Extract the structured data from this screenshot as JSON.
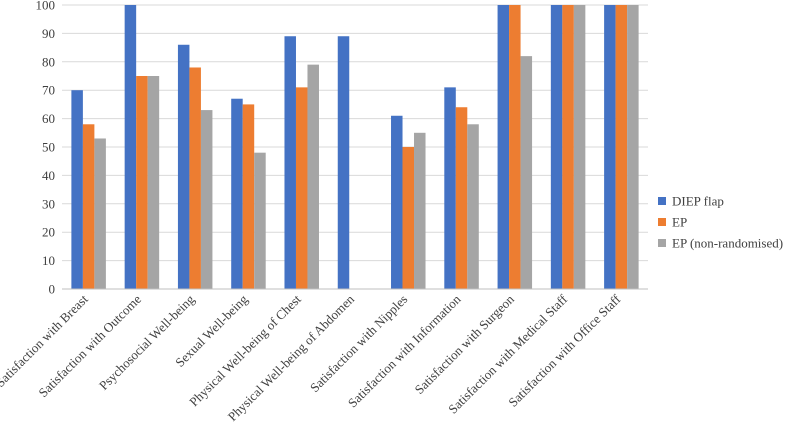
{
  "chart_data": {
    "type": "bar",
    "title": "",
    "xlabel": "",
    "ylabel": "",
    "ylim": [
      0,
      100
    ],
    "yticks": [
      0,
      10,
      20,
      30,
      40,
      50,
      60,
      70,
      80,
      90,
      100
    ],
    "grid": "horizontal",
    "legend_position": "right",
    "categories": [
      "Satisfaction with Breast",
      "Satisfaction with Outcome",
      "Psychosocial Well-being",
      "Sexual Well-being",
      "Physical Well-being of Chest",
      "Physical Well-being of Abdomen",
      "Satisfaction with Nipples",
      "Satisfaction with Information",
      "Satisfaction with Surgeon",
      "Satisfaction with Medical Staff",
      "Satisfaction with Office Staff"
    ],
    "series": [
      {
        "name": "DIEP flap",
        "color": "#4472c4",
        "values": [
          70,
          100,
          86,
          67,
          89,
          89,
          61,
          71,
          100,
          100,
          100
        ]
      },
      {
        "name": "EP",
        "color": "#ed7d31",
        "values": [
          58,
          75,
          78,
          65,
          71,
          null,
          50,
          64,
          100,
          100,
          100
        ]
      },
      {
        "name": "EP (non-randomised)",
        "color": "#a5a5a5",
        "values": [
          53,
          75,
          63,
          48,
          79,
          null,
          55,
          58,
          82,
          100,
          100
        ]
      }
    ]
  }
}
